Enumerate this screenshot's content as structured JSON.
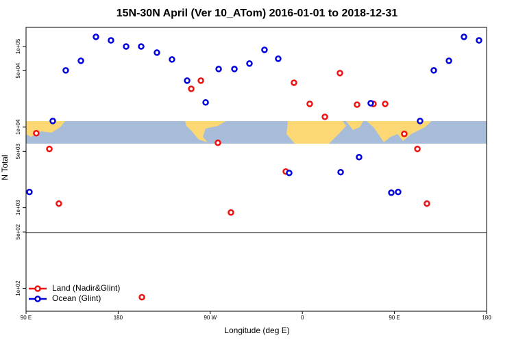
{
  "chart_data": {
    "type": "scatter",
    "title": "15N-30N April (Ver 10_ATom)   2016-01-01 to 2018-12-31",
    "x_label": "Longitude (deg E)",
    "y_label": "N Total",
    "log_y": true,
    "legend": "lower left",
    "xlim": [
      90,
      540
    ],
    "ylim": [
      52,
      172600
    ],
    "xticks": [
      {
        "value": 90,
        "label": "90 E"
      },
      180,
      {
        "value": 270,
        "label": "90 W"
      },
      {
        "value": 360,
        "label": "0"
      },
      {
        "value": 450,
        "label": "90 E"
      },
      {
        "value": 540,
        "label": "180"
      }
    ],
    "yticks": [
      {
        "value": 100,
        "label": "1e+02"
      },
      {
        "value": 500,
        "label": "5e+02"
      },
      {
        "value": 1000,
        "label": "1e+03"
      },
      {
        "value": 5000,
        "label": "5e+03"
      },
      {
        "value": 10000,
        "label": "1e+04"
      },
      {
        "value": 50000,
        "label": "5e+04"
      },
      {
        "value": 100000,
        "label": "1e+05"
      }
    ],
    "series": [
      {
        "name": "Land (Nadir&Glint)",
        "color": "#ee1111",
        "x": [
          100.0,
          112.8,
          122.1,
          203.2,
          251.4,
          260.8,
          277.5,
          290.2,
          343.8,
          351.8,
          367.2,
          382.0,
          396.7,
          413.4,
          429.5,
          440.9,
          459.6,
          472.4,
          481.7
        ],
        "values": [
          8390,
          5360,
          1125,
          77.6,
          29800,
          37700,
          6380,
          873,
          2810,
          35500,
          19400,
          13400,
          46700,
          19000,
          19400,
          19400,
          8240,
          5360,
          1125
        ]
      },
      {
        "name": "Ocean (Glint)",
        "color": "#0000dd",
        "x": [
          93.3,
          116.1,
          128.8,
          143.6,
          158.3,
          173.0,
          187.8,
          202.5,
          217.9,
          232.6,
          247.4,
          265.5,
          278.2,
          293.6,
          308.3,
          323.0,
          336.4,
          347.1,
          397.4,
          415.4,
          426.8,
          446.9,
          453.6,
          475.0,
          488.4,
          503.2,
          517.9,
          532.6
        ],
        "values": [
          1567,
          11900,
          50500,
          66400,
          131500,
          119000,
          100000,
          100000,
          83900,
          69000,
          37700,
          20200,
          52500,
          52500,
          61400,
          90800,
          70400,
          2700,
          2760,
          4240,
          19800,
          1535,
          1567,
          11900,
          50500,
          66400,
          131500,
          119000
        ]
      }
    ]
  }
}
